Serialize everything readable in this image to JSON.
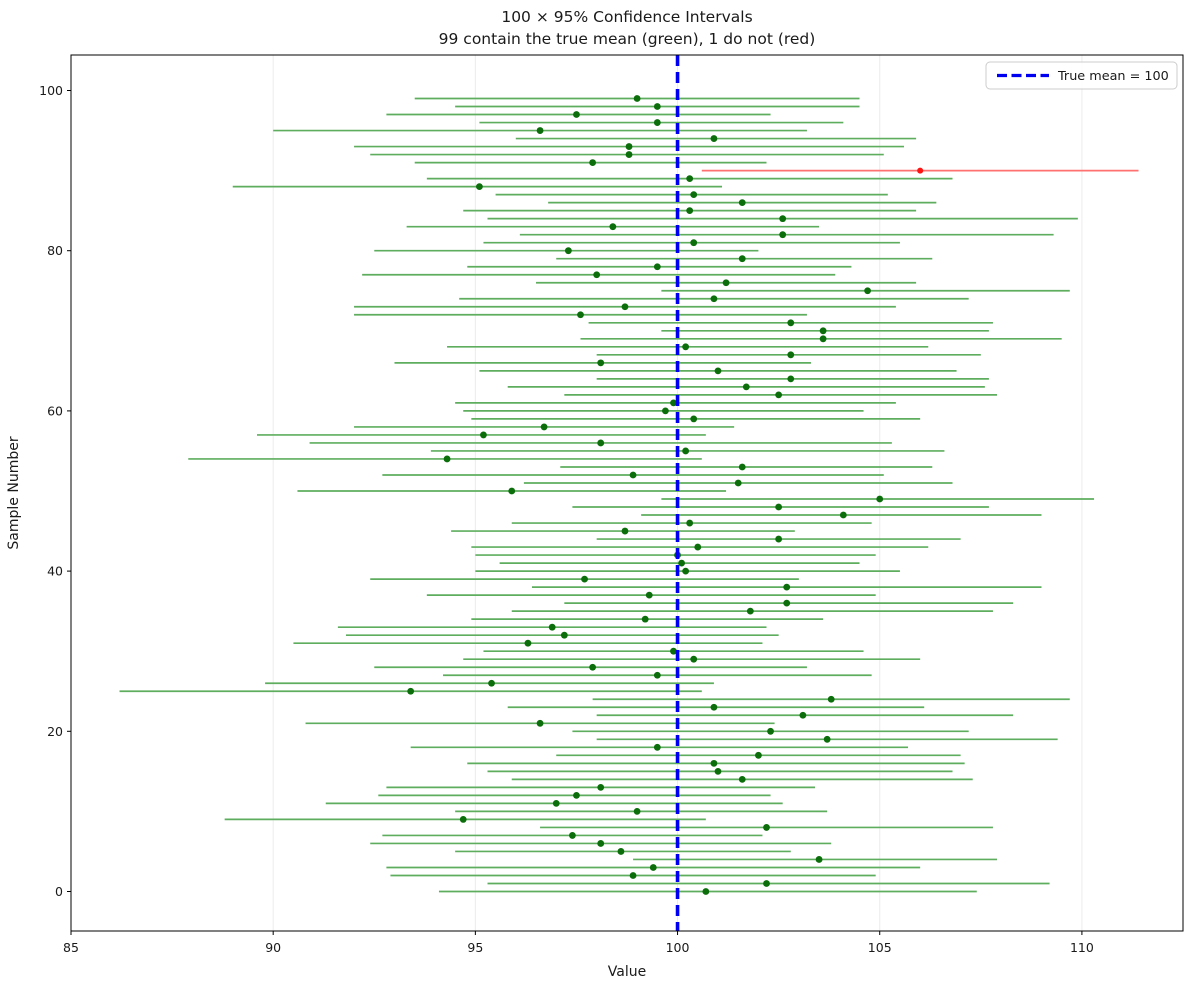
{
  "legend": {
    "label": "True mean = 100"
  },
  "colors": {
    "ci_green": "#5ead5e",
    "mean_green": "#0b6e0b",
    "ci_red": "#ff7070",
    "mean_red": "#ff1414",
    "true_mean_blue": "#0000f0",
    "grid": "#ececec",
    "spine": "#000000"
  },
  "chart_data": {
    "type": "scatter",
    "title": "100 × 95% Confidence Intervals",
    "subtitle": "99 contain the true mean (green), 1 do not (red)",
    "xlabel": "Value",
    "ylabel": "Sample Number",
    "xlim": [
      85,
      112.5
    ],
    "ylim": [
      -5,
      105
    ],
    "x_ticks": [
      85,
      90,
      95,
      100,
      105,
      110
    ],
    "y_ticks": [
      0,
      20,
      40,
      60,
      80,
      100
    ],
    "grid": "vertical-only",
    "legend_position": "upper-right",
    "true_mean": 100,
    "red_sample_index": 90,
    "mean": [
      100.7,
      102.2,
      98.9,
      99.4,
      103.5,
      98.6,
      98.1,
      97.4,
      102.2,
      94.7,
      99.0,
      97.0,
      97.5,
      98.1,
      101.6,
      101.0,
      100.9,
      102.0,
      99.5,
      103.7,
      102.3,
      96.6,
      103.1,
      100.9,
      103.8,
      93.4,
      95.4,
      99.5,
      97.9,
      100.4,
      99.9,
      96.3,
      97.2,
      96.9,
      99.2,
      101.8,
      102.7,
      99.3,
      102.7,
      97.7,
      100.2,
      100.1,
      100.0,
      100.5,
      102.5,
      98.7,
      100.3,
      104.1,
      102.5,
      105.0,
      95.9,
      101.5,
      98.9,
      101.6,
      94.3,
      100.2,
      98.1,
      95.2,
      96.7,
      100.4,
      99.7,
      99.9,
      102.5,
      101.7,
      102.8,
      101.0,
      98.1,
      102.8,
      100.2,
      103.6,
      103.6,
      102.8,
      97.6,
      98.7,
      100.9,
      104.7,
      101.2,
      98.0,
      99.5,
      101.6,
      97.3,
      100.4,
      102.6,
      98.4,
      102.6,
      100.3,
      101.6,
      100.4,
      95.1,
      100.3,
      106.0,
      97.9,
      98.8,
      98.8,
      100.9,
      96.6,
      99.5,
      97.5,
      99.5,
      99.0
    ],
    "ci_low": [
      94.1,
      95.3,
      92.9,
      92.8,
      98.9,
      94.5,
      92.4,
      92.7,
      96.6,
      88.8,
      94.5,
      91.3,
      92.6,
      92.8,
      95.9,
      95.3,
      94.8,
      97.0,
      93.4,
      98.0,
      97.4,
      90.8,
      98.0,
      95.8,
      97.9,
      86.2,
      89.8,
      94.2,
      92.5,
      94.7,
      95.2,
      90.5,
      91.8,
      91.6,
      94.9,
      95.9,
      97.2,
      93.8,
      96.4,
      92.4,
      95.0,
      95.6,
      95.0,
      94.9,
      98.0,
      94.4,
      95.9,
      99.1,
      97.4,
      99.6,
      90.6,
      96.2,
      92.7,
      97.1,
      87.9,
      93.9,
      90.9,
      89.6,
      92.0,
      94.9,
      94.7,
      94.5,
      97.2,
      95.8,
      98.0,
      95.1,
      93.0,
      98.0,
      94.3,
      97.6,
      99.6,
      97.8,
      92.0,
      92.0,
      94.6,
      99.6,
      96.5,
      92.2,
      94.8,
      97.0,
      92.5,
      95.2,
      96.1,
      93.3,
      95.3,
      94.7,
      96.8,
      95.5,
      89.0,
      93.8,
      100.6,
      93.5,
      92.4,
      92.0,
      96.0,
      90.0,
      95.1,
      92.8,
      94.5,
      93.5
    ],
    "ci_high": [
      107.4,
      109.2,
      104.9,
      106.0,
      107.9,
      102.8,
      103.8,
      102.1,
      107.8,
      100.7,
      103.7,
      102.6,
      102.3,
      103.4,
      107.3,
      106.8,
      107.1,
      107.0,
      105.7,
      109.4,
      107.2,
      102.4,
      108.3,
      106.1,
      109.7,
      100.6,
      100.9,
      104.8,
      103.2,
      106.0,
      104.6,
      102.1,
      102.5,
      102.2,
      103.6,
      107.8,
      108.3,
      104.9,
      109.0,
      103.0,
      105.5,
      104.5,
      104.9,
      106.2,
      107.0,
      102.9,
      104.8,
      109.0,
      107.7,
      110.3,
      101.2,
      106.8,
      105.1,
      106.3,
      100.6,
      106.6,
      105.3,
      100.7,
      101.4,
      106.0,
      104.6,
      105.4,
      107.9,
      107.6,
      107.7,
      106.9,
      103.3,
      107.5,
      106.2,
      109.5,
      107.7,
      107.8,
      103.2,
      105.4,
      107.2,
      109.7,
      105.9,
      103.9,
      104.3,
      106.3,
      102.0,
      105.5,
      109.3,
      103.5,
      109.9,
      105.9,
      106.4,
      105.2,
      101.1,
      106.8,
      111.4,
      102.2,
      105.1,
      105.6,
      105.9,
      103.2,
      104.1,
      102.3,
      104.5,
      104.5
    ]
  }
}
